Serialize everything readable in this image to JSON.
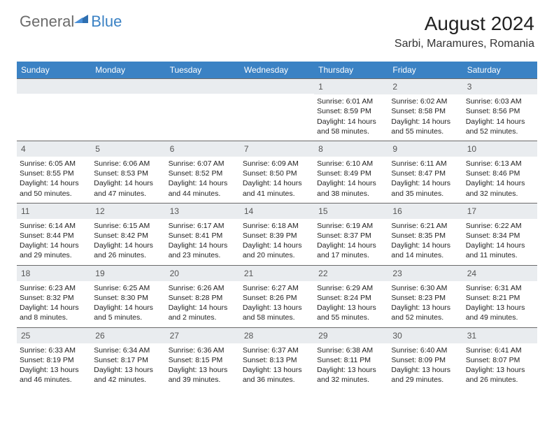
{
  "brand": {
    "general": "General",
    "blue": "Blue"
  },
  "title": "August 2024",
  "location": "Sarbi, Maramures, Romania",
  "colors": {
    "header_bg": "#3b82c4",
    "header_text": "#ffffff",
    "daynum_bg": "#e9ecef",
    "daynum_border": "#6a6a6a",
    "body_text": "#222222",
    "logo_gray": "#6b6b6b",
    "logo_blue": "#3b82c4",
    "page_bg": "#ffffff"
  },
  "typography": {
    "month_title_size": 28,
    "location_size": 16,
    "weekday_size": 12,
    "daynum_size": 12,
    "body_size": 10.5
  },
  "weekdays": [
    "Sunday",
    "Monday",
    "Tuesday",
    "Wednesday",
    "Thursday",
    "Friday",
    "Saturday"
  ],
  "weeks": [
    [
      null,
      null,
      null,
      null,
      {
        "n": "1",
        "sr": "6:01 AM",
        "ss": "8:59 PM",
        "dl": "14 hours and 58 minutes."
      },
      {
        "n": "2",
        "sr": "6:02 AM",
        "ss": "8:58 PM",
        "dl": "14 hours and 55 minutes."
      },
      {
        "n": "3",
        "sr": "6:03 AM",
        "ss": "8:56 PM",
        "dl": "14 hours and 52 minutes."
      }
    ],
    [
      {
        "n": "4",
        "sr": "6:05 AM",
        "ss": "8:55 PM",
        "dl": "14 hours and 50 minutes."
      },
      {
        "n": "5",
        "sr": "6:06 AM",
        "ss": "8:53 PM",
        "dl": "14 hours and 47 minutes."
      },
      {
        "n": "6",
        "sr": "6:07 AM",
        "ss": "8:52 PM",
        "dl": "14 hours and 44 minutes."
      },
      {
        "n": "7",
        "sr": "6:09 AM",
        "ss": "8:50 PM",
        "dl": "14 hours and 41 minutes."
      },
      {
        "n": "8",
        "sr": "6:10 AM",
        "ss": "8:49 PM",
        "dl": "14 hours and 38 minutes."
      },
      {
        "n": "9",
        "sr": "6:11 AM",
        "ss": "8:47 PM",
        "dl": "14 hours and 35 minutes."
      },
      {
        "n": "10",
        "sr": "6:13 AM",
        "ss": "8:46 PM",
        "dl": "14 hours and 32 minutes."
      }
    ],
    [
      {
        "n": "11",
        "sr": "6:14 AM",
        "ss": "8:44 PM",
        "dl": "14 hours and 29 minutes."
      },
      {
        "n": "12",
        "sr": "6:15 AM",
        "ss": "8:42 PM",
        "dl": "14 hours and 26 minutes."
      },
      {
        "n": "13",
        "sr": "6:17 AM",
        "ss": "8:41 PM",
        "dl": "14 hours and 23 minutes."
      },
      {
        "n": "14",
        "sr": "6:18 AM",
        "ss": "8:39 PM",
        "dl": "14 hours and 20 minutes."
      },
      {
        "n": "15",
        "sr": "6:19 AM",
        "ss": "8:37 PM",
        "dl": "14 hours and 17 minutes."
      },
      {
        "n": "16",
        "sr": "6:21 AM",
        "ss": "8:35 PM",
        "dl": "14 hours and 14 minutes."
      },
      {
        "n": "17",
        "sr": "6:22 AM",
        "ss": "8:34 PM",
        "dl": "14 hours and 11 minutes."
      }
    ],
    [
      {
        "n": "18",
        "sr": "6:23 AM",
        "ss": "8:32 PM",
        "dl": "14 hours and 8 minutes."
      },
      {
        "n": "19",
        "sr": "6:25 AM",
        "ss": "8:30 PM",
        "dl": "14 hours and 5 minutes."
      },
      {
        "n": "20",
        "sr": "6:26 AM",
        "ss": "8:28 PM",
        "dl": "14 hours and 2 minutes."
      },
      {
        "n": "21",
        "sr": "6:27 AM",
        "ss": "8:26 PM",
        "dl": "13 hours and 58 minutes."
      },
      {
        "n": "22",
        "sr": "6:29 AM",
        "ss": "8:24 PM",
        "dl": "13 hours and 55 minutes."
      },
      {
        "n": "23",
        "sr": "6:30 AM",
        "ss": "8:23 PM",
        "dl": "13 hours and 52 minutes."
      },
      {
        "n": "24",
        "sr": "6:31 AM",
        "ss": "8:21 PM",
        "dl": "13 hours and 49 minutes."
      }
    ],
    [
      {
        "n": "25",
        "sr": "6:33 AM",
        "ss": "8:19 PM",
        "dl": "13 hours and 46 minutes."
      },
      {
        "n": "26",
        "sr": "6:34 AM",
        "ss": "8:17 PM",
        "dl": "13 hours and 42 minutes."
      },
      {
        "n": "27",
        "sr": "6:36 AM",
        "ss": "8:15 PM",
        "dl": "13 hours and 39 minutes."
      },
      {
        "n": "28",
        "sr": "6:37 AM",
        "ss": "8:13 PM",
        "dl": "13 hours and 36 minutes."
      },
      {
        "n": "29",
        "sr": "6:38 AM",
        "ss": "8:11 PM",
        "dl": "13 hours and 32 minutes."
      },
      {
        "n": "30",
        "sr": "6:40 AM",
        "ss": "8:09 PM",
        "dl": "13 hours and 29 minutes."
      },
      {
        "n": "31",
        "sr": "6:41 AM",
        "ss": "8:07 PM",
        "dl": "13 hours and 26 minutes."
      }
    ]
  ],
  "labels": {
    "sunrise": "Sunrise:",
    "sunset": "Sunset:",
    "daylight": "Daylight:"
  }
}
